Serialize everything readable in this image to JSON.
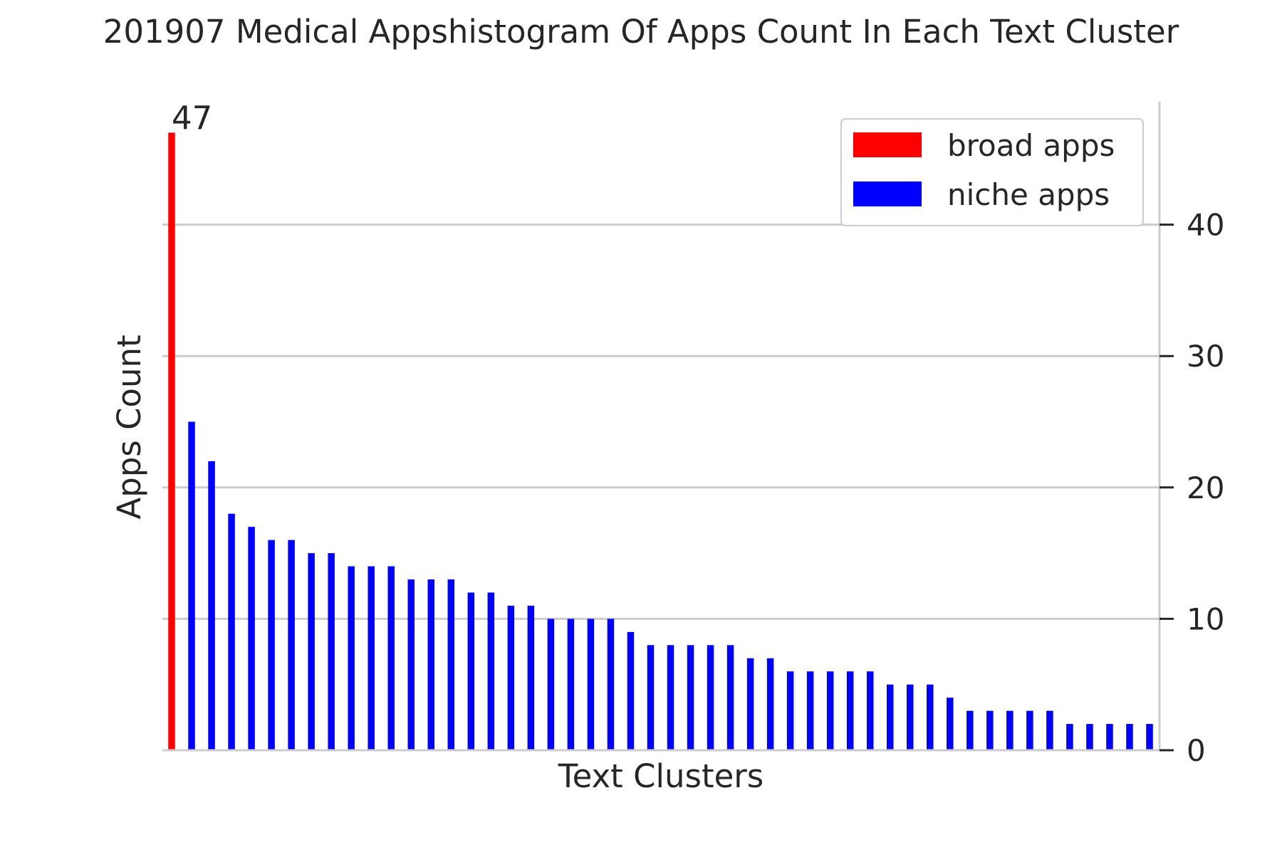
{
  "chart_data": {
    "type": "bar",
    "title": "201907 Medical Appshistogram Of Apps Count In Each Text Cluster",
    "xlabel": "Text Clusters",
    "ylabel": "Apps Count",
    "ylim": [
      0,
      49.35
    ],
    "yticks": [
      0,
      10,
      20,
      30,
      40
    ],
    "ytick_side": "right",
    "grid": "y",
    "legend_position": "top-right",
    "series": [
      {
        "name": "broad apps",
        "color": "#ff0000",
        "positions": [
          0
        ],
        "values": [
          47
        ]
      },
      {
        "name": "niche apps",
        "color": "#0000ff",
        "positions": [
          1,
          2,
          3,
          4,
          5,
          6,
          7,
          8,
          9,
          10,
          11,
          12,
          13,
          14,
          15,
          16,
          17,
          18,
          19,
          20,
          21,
          22,
          23,
          24,
          25,
          26,
          27,
          28,
          29,
          30,
          31,
          32,
          33,
          34,
          35,
          36,
          37,
          38,
          39,
          40,
          41,
          42,
          43,
          44,
          45,
          46,
          47,
          48,
          49
        ],
        "values": [
          25,
          22,
          18,
          17,
          16,
          16,
          15,
          15,
          14,
          14,
          14,
          13,
          13,
          13,
          12,
          12,
          11,
          11,
          10,
          10,
          10,
          10,
          9,
          8,
          8,
          8,
          8,
          8,
          7,
          7,
          6,
          6,
          6,
          6,
          6,
          5,
          5,
          5,
          4,
          3,
          3,
          3,
          3,
          3,
          2,
          2,
          2,
          2,
          2
        ]
      }
    ],
    "data_labels": [
      {
        "position": 0,
        "text": "47"
      }
    ]
  }
}
